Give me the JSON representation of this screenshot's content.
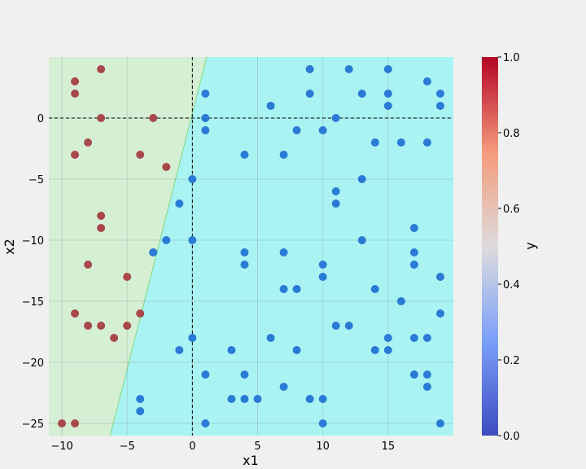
{
  "chart_data": {
    "type": "scatter",
    "title": "",
    "xlabel": "x1",
    "ylabel": "x2",
    "xlim": [
      -11,
      20
    ],
    "ylim": [
      -26,
      5
    ],
    "x_ticks": [
      -10,
      -5,
      0,
      5,
      10,
      15
    ],
    "x_tick_labels": [
      "−10",
      "−5",
      "0",
      "5",
      "10",
      "15"
    ],
    "y_ticks": [
      0,
      -5,
      -10,
      -15,
      -20,
      -25
    ],
    "y_tick_labels": [
      "0",
      "−5",
      "−10",
      "−15",
      "−20",
      "−25"
    ],
    "grid": true,
    "reference_lines": {
      "x": 0,
      "y": 0,
      "style": "dashed"
    },
    "decision_boundary": {
      "points": [
        [
          1.1,
          5
        ],
        [
          -6.3,
          -26
        ]
      ],
      "region_class1_color": "#d5efd5",
      "region_class0_color": "#aaf3f3",
      "boundary_color": "#7ddc7d"
    },
    "colors": {
      "class1": "#a8484a",
      "class0": "#2a7ad6",
      "background": "#f0f0f0"
    },
    "colorbar": {
      "label": "y",
      "ticks": [
        "0.0",
        "0.2",
        "0.4",
        "0.6",
        "0.8",
        "1.0"
      ],
      "colormap": "coolwarm"
    },
    "series": [
      {
        "label": 1,
        "points": [
          [
            -7,
            4
          ],
          [
            -9,
            3
          ],
          [
            -9,
            2
          ],
          [
            -7,
            0
          ],
          [
            -3,
            0
          ],
          [
            -8,
            -2
          ],
          [
            -9,
            -3
          ],
          [
            -4,
            -3
          ],
          [
            -2,
            -4
          ],
          [
            -7,
            -8
          ],
          [
            -7,
            -9
          ],
          [
            -3,
            -11
          ],
          [
            -8,
            -12
          ],
          [
            -5,
            -13
          ],
          [
            -9,
            -16
          ],
          [
            -4,
            -16
          ],
          [
            -8,
            -17
          ],
          [
            -7,
            -17
          ],
          [
            -5,
            -17
          ],
          [
            -6,
            -18
          ],
          [
            -10,
            -25
          ],
          [
            -9,
            -25
          ]
        ]
      },
      {
        "label": 0,
        "points": [
          [
            9,
            4
          ],
          [
            12,
            4
          ],
          [
            15,
            4
          ],
          [
            18,
            3
          ],
          [
            1,
            2
          ],
          [
            9,
            2
          ],
          [
            13,
            2
          ],
          [
            15,
            2
          ],
          [
            19,
            2
          ],
          [
            6,
            1
          ],
          [
            15,
            1
          ],
          [
            19,
            1
          ],
          [
            1,
            0
          ],
          [
            11,
            0
          ],
          [
            1,
            -1
          ],
          [
            8,
            -1
          ],
          [
            10,
            -1
          ],
          [
            14,
            -2
          ],
          [
            16,
            -2
          ],
          [
            18,
            -2
          ],
          [
            4,
            -3
          ],
          [
            7,
            -3
          ],
          [
            0,
            -5
          ],
          [
            13,
            -5
          ],
          [
            11,
            -6
          ],
          [
            -1,
            -7
          ],
          [
            11,
            -7
          ],
          [
            17,
            -9
          ],
          [
            -2,
            -10
          ],
          [
            0,
            -10
          ],
          [
            13,
            -10
          ],
          [
            4,
            -11
          ],
          [
            7,
            -11
          ],
          [
            17,
            -11
          ],
          [
            -3,
            -11
          ],
          [
            4,
            -12
          ],
          [
            10,
            -12
          ],
          [
            17,
            -12
          ],
          [
            10,
            -13
          ],
          [
            19,
            -13
          ],
          [
            7,
            -14
          ],
          [
            8,
            -14
          ],
          [
            14,
            -14
          ],
          [
            16,
            -15
          ],
          [
            19,
            -16
          ],
          [
            11,
            -17
          ],
          [
            12,
            -17
          ],
          [
            0,
            -18
          ],
          [
            6,
            -18
          ],
          [
            15,
            -18
          ],
          [
            17,
            -18
          ],
          [
            18,
            -18
          ],
          [
            -1,
            -19
          ],
          [
            3,
            -19
          ],
          [
            8,
            -19
          ],
          [
            14,
            -19
          ],
          [
            15,
            -19
          ],
          [
            1,
            -21
          ],
          [
            4,
            -21
          ],
          [
            17,
            -21
          ],
          [
            18,
            -21
          ],
          [
            7,
            -22
          ],
          [
            18,
            -22
          ],
          [
            -4,
            -23
          ],
          [
            3,
            -23
          ],
          [
            4,
            -23
          ],
          [
            5,
            -23
          ],
          [
            9,
            -23
          ],
          [
            10,
            -23
          ],
          [
            -4,
            -24
          ],
          [
            1,
            -25
          ],
          [
            10,
            -25
          ],
          [
            19,
            -25
          ]
        ]
      }
    ]
  }
}
